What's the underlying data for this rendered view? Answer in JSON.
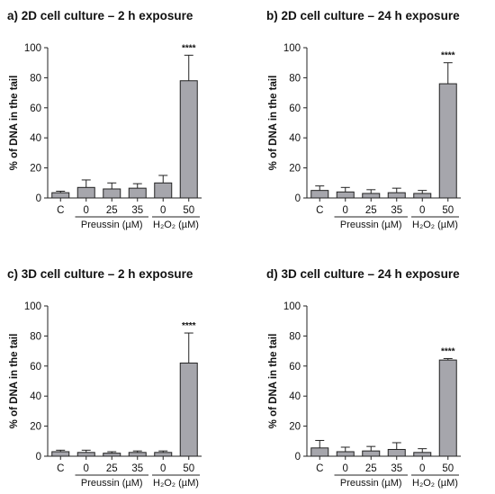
{
  "colors": {
    "bar": "#a6a6ac",
    "edge": "#222222",
    "text": "#111111"
  },
  "chart_data": [
    {
      "type": "bar",
      "panel": "a)",
      "title": "a) 2D cell culture – 2 h exposure",
      "ylabel": "% of DNA in the tail",
      "ylim": [
        0,
        100
      ],
      "yticks": [
        0,
        20,
        40,
        60,
        80,
        100
      ],
      "categories": [
        "C",
        "0",
        "25",
        "35",
        "0",
        "50"
      ],
      "groups": [
        {
          "label": "Preussin (µM)",
          "from": 1,
          "to": 3
        },
        {
          "label": "H₂O₂ (µM)",
          "from": 4,
          "to": 5
        }
      ],
      "values": [
        3.5,
        7,
        6,
        6.5,
        10,
        78
      ],
      "errors": [
        1,
        5,
        4,
        3,
        5,
        17
      ],
      "annotations": [
        "",
        "",
        "",
        "",
        "",
        "****"
      ]
    },
    {
      "type": "bar",
      "panel": "b)",
      "title": "b) 2D cell culture – 24 h exposure",
      "ylabel": "% of DNA in the tail",
      "ylim": [
        0,
        100
      ],
      "yticks": [
        0,
        20,
        40,
        60,
        80,
        100
      ],
      "categories": [
        "C",
        "0",
        "25",
        "35",
        "0",
        "50"
      ],
      "groups": [
        {
          "label": "Preussin (µM)",
          "from": 1,
          "to": 3
        },
        {
          "label": "H₂O₂ (µM)",
          "from": 4,
          "to": 5
        }
      ],
      "values": [
        5,
        4,
        3,
        3.5,
        3,
        76
      ],
      "errors": [
        3,
        3,
        2.5,
        3,
        2,
        14
      ],
      "annotations": [
        "",
        "",
        "",
        "",
        "",
        "****"
      ]
    },
    {
      "type": "bar",
      "panel": "c)",
      "title": "c) 3D cell culture – 2 h exposure",
      "ylabel": "% of DNA in the tail",
      "ylim": [
        0,
        100
      ],
      "yticks": [
        0,
        20,
        40,
        60,
        80,
        100
      ],
      "categories": [
        "C",
        "0",
        "25",
        "35",
        "0",
        "50"
      ],
      "groups": [
        {
          "label": "Preussin (µM)",
          "from": 1,
          "to": 3
        },
        {
          "label": "H₂O₂ (µM)",
          "from": 4,
          "to": 5
        }
      ],
      "values": [
        3,
        2.5,
        2,
        2.5,
        2.5,
        62
      ],
      "errors": [
        1,
        1.5,
        1,
        1,
        1,
        20
      ],
      "annotations": [
        "",
        "",
        "",
        "",
        "",
        "****"
      ]
    },
    {
      "type": "bar",
      "panel": "d)",
      "title": "d) 3D cell culture – 24 h exposure",
      "ylabel": "% of DNA in the tail",
      "ylim": [
        0,
        100
      ],
      "yticks": [
        0,
        20,
        40,
        60,
        80,
        100
      ],
      "categories": [
        "C",
        "0",
        "25",
        "35",
        "0",
        "50"
      ],
      "groups": [
        {
          "label": "Preussin (µM)",
          "from": 1,
          "to": 3
        },
        {
          "label": "H₂O₂ (µM)",
          "from": 4,
          "to": 5
        }
      ],
      "values": [
        5.5,
        3,
        3.5,
        4.5,
        2.5,
        64
      ],
      "errors": [
        5,
        3,
        3,
        4.5,
        2.5,
        1
      ],
      "annotations": [
        "",
        "",
        "",
        "",
        "",
        "****"
      ]
    }
  ]
}
